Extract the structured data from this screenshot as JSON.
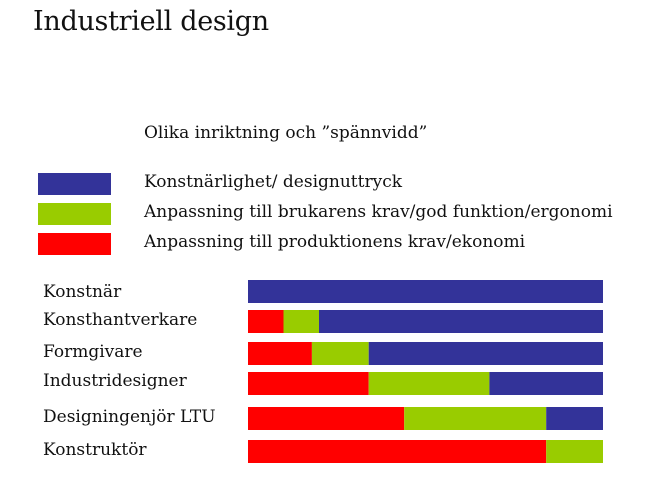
{
  "page": {
    "title": "Industriell design"
  },
  "colors": {
    "blue": "#333399",
    "green": "#99cc00",
    "red": "#ff0000"
  },
  "chart_data": {
    "type": "bar",
    "stacked": true,
    "orientation": "horizontal",
    "title": "Olika inriktning och ”spännvidd”",
    "legend_position": "top-left",
    "categories": [
      "Konstnär",
      "Konsthantverkare",
      "Formgivare",
      "Industridesigner",
      "Designingenjör LTU",
      "Konstruktör"
    ],
    "series": [
      {
        "name": "Anpassning till produktionens krav/ekonomi",
        "color": "#ff0000",
        "values": [
          0,
          10,
          18,
          34,
          44,
          84
        ]
      },
      {
        "name": "Anpassning till brukarens krav/god funktion/ergonomi",
        "color": "#99cc00",
        "values": [
          0,
          10,
          16,
          34,
          40,
          16
        ]
      },
      {
        "name": "Konstnärlighet/ designuttryck",
        "color": "#333399",
        "values": [
          100,
          80,
          66,
          32,
          16,
          0
        ]
      }
    ],
    "legend_order": [
      2,
      1,
      0
    ],
    "xlim": [
      0,
      100
    ]
  }
}
